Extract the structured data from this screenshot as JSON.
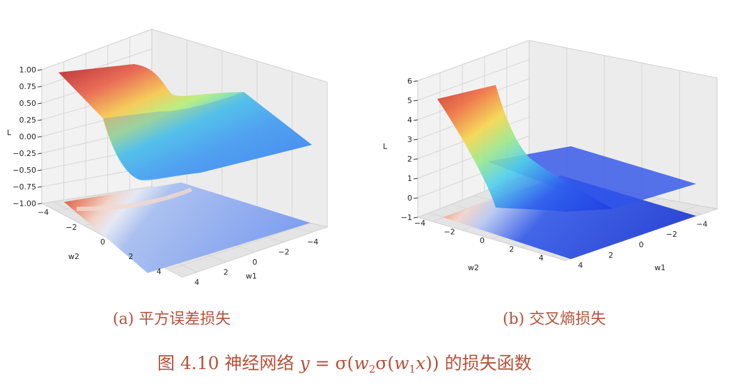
{
  "chart_data": [
    {
      "type": "surface3d",
      "panel": "a",
      "zlabel": "L",
      "xlabel": "w1",
      "ylabel": "w2",
      "x_ticks": [
        "4",
        "2",
        "0",
        "−2",
        "−4"
      ],
      "y_ticks": [
        "−4",
        "−2",
        "0",
        "2",
        "4"
      ],
      "z_ticks": [
        "1.00",
        "0.75",
        "0.50",
        "0.25",
        "0.00",
        "−0.25",
        "−0.50",
        "−0.75",
        "−1.00"
      ],
      "xlim": [
        -5,
        5
      ],
      "ylim": [
        -5,
        5
      ],
      "zlim": [
        -1,
        1
      ],
      "grid": true,
      "colormap": "jet",
      "contour_projection": true
    },
    {
      "type": "surface3d",
      "panel": "b",
      "zlabel": "L",
      "xlabel": "w1",
      "ylabel": "w2",
      "x_ticks": [
        "4",
        "2",
        "0",
        "−2",
        "−4"
      ],
      "y_ticks": [
        "−4",
        "−2",
        "0",
        "2",
        "4"
      ],
      "z_ticks": [
        "6",
        "5",
        "4",
        "3",
        "2",
        "1",
        "0",
        "−1"
      ],
      "xlim": [
        -5,
        5
      ],
      "ylim": [
        -5,
        5
      ],
      "zlim": [
        -1,
        6
      ],
      "grid": true,
      "colormap": "jet",
      "contour_projection": true
    }
  ],
  "captions": {
    "a": "(a) 平方误差损失",
    "b": "(b) 交叉熵损失",
    "figure_prefix": "图 4.10   神经网络 ",
    "figure_formula_y": "y",
    "figure_formula_eq": " = σ(",
    "figure_formula_w2": "w",
    "figure_formula_sub2": "2",
    "figure_formula_mid": "σ(",
    "figure_formula_w1": "w",
    "figure_formula_sub1": "1",
    "figure_formula_x": "x",
    "figure_formula_close": "))",
    "figure_suffix": " 的损失函数"
  }
}
